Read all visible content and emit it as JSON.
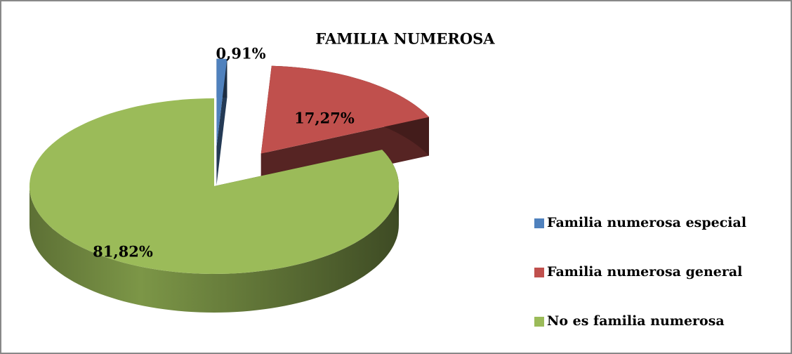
{
  "chart_data": {
    "type": "pie",
    "title": "FAMILIA NUMEROSA",
    "categories": [
      "Familia numerosa especial",
      "Familia numerosa general",
      "No es familia numerosa"
    ],
    "values": [
      0.91,
      17.27,
      81.82
    ],
    "value_labels": [
      "0,91%",
      "17,27%",
      "81,82%"
    ],
    "colors": [
      "#4f81bd",
      "#c0504d",
      "#9bbb59"
    ],
    "legend": "right"
  }
}
